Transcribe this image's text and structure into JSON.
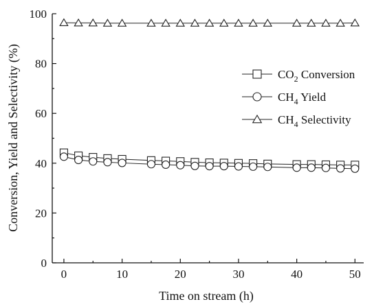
{
  "chart_data": {
    "type": "line",
    "xlabel": "Time on stream (h)",
    "ylabel": "Conversion, Yield and Selectivity (%)",
    "xlim": [
      -2,
      51.5
    ],
    "ylim": [
      0,
      100
    ],
    "xticks": [
      0,
      10,
      20,
      30,
      40,
      50
    ],
    "yticks": [
      0,
      20,
      40,
      60,
      80,
      100
    ],
    "grid": false,
    "legend_position": "center-right",
    "series": [
      {
        "name": "CO2 Conversion",
        "label_main": "CO",
        "label_sub": "2",
        "label_rest": " Conversion",
        "marker": "square",
        "x": [
          0,
          2.5,
          5,
          7.5,
          10,
          15,
          17.5,
          20,
          22.5,
          25,
          27.5,
          30,
          32.5,
          35,
          40,
          42.5,
          45,
          47.5,
          50
        ],
        "values": [
          44.2,
          43.0,
          42.4,
          41.9,
          41.6,
          41.1,
          40.9,
          40.7,
          40.4,
          40.2,
          40.1,
          40.0,
          39.9,
          39.7,
          39.5,
          39.5,
          39.4,
          39.3,
          39.3
        ]
      },
      {
        "name": "CH4 Yield",
        "label_main": "CH",
        "label_sub": "4",
        "label_rest": " Yield",
        "marker": "circle",
        "x": [
          0,
          2.5,
          5,
          7.5,
          10,
          15,
          17.5,
          20,
          22.5,
          25,
          27.5,
          30,
          32.5,
          35,
          40,
          42.5,
          45,
          47.5,
          50
        ],
        "values": [
          42.6,
          41.3,
          40.7,
          40.4,
          40.1,
          39.6,
          39.4,
          39.2,
          38.9,
          38.8,
          38.8,
          38.7,
          38.6,
          38.5,
          38.2,
          38.2,
          38.1,
          37.9,
          37.8
        ]
      },
      {
        "name": "CH4 Selectivity",
        "label_main": "CH",
        "label_sub": "4",
        "label_rest": "  Selectivity",
        "marker": "triangle",
        "x": [
          0,
          2.5,
          5,
          7.5,
          10,
          15,
          17.5,
          20,
          22.5,
          25,
          27.5,
          30,
          32.5,
          35,
          40,
          42.5,
          45,
          47.5,
          50
        ],
        "values": [
          96.4,
          96.3,
          96.3,
          96.2,
          96.2,
          96.2,
          96.2,
          96.2,
          96.2,
          96.2,
          96.2,
          96.2,
          96.2,
          96.2,
          96.2,
          96.2,
          96.2,
          96.2,
          96.3
        ]
      }
    ]
  }
}
